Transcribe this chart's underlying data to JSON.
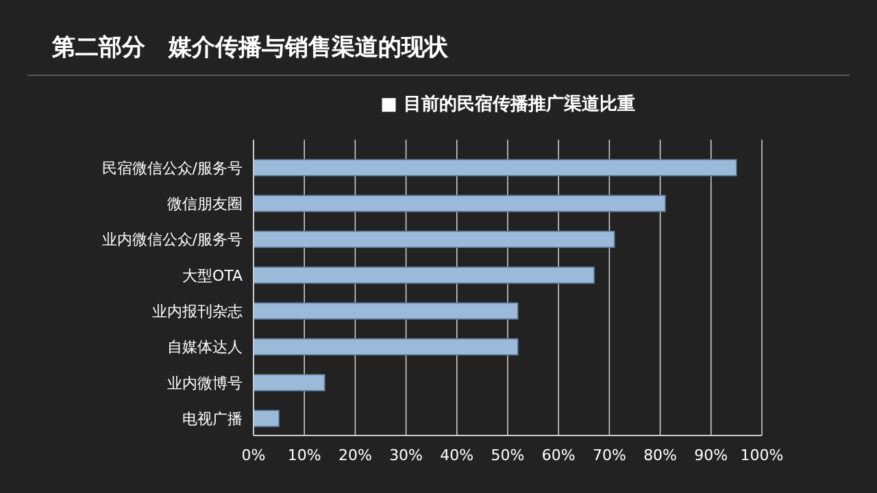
{
  "chart_data": {
    "type": "bar",
    "orientation": "horizontal",
    "title": "第二部分　媒介传播与销售渠道的现状",
    "subtitle": "■ 目前的民宿传播推广渠道比重",
    "categories": [
      "民宿微信公众/服务号",
      "微信朋友圈",
      "业内微信公众/服务号",
      "大型OTA",
      "业内报刊杂志",
      "自媒体达人",
      "业内微博号",
      "电视广播"
    ],
    "values": [
      95,
      81,
      71,
      67,
      52,
      52,
      14,
      5
    ],
    "color": "#9bb9d8",
    "xlim": [
      0,
      100
    ],
    "xticks": [
      {
        "value": 0,
        "label": "0%"
      },
      {
        "value": 10,
        "label": "10%"
      },
      {
        "value": 20,
        "label": "20%"
      },
      {
        "value": 30,
        "label": "30%"
      },
      {
        "value": 40,
        "label": "40%"
      },
      {
        "value": 50,
        "label": "50%"
      },
      {
        "value": 60,
        "label": "60%"
      },
      {
        "value": 70,
        "label": "70%"
      },
      {
        "value": 80,
        "label": "80%"
      },
      {
        "value": 90,
        "label": "90%"
      },
      {
        "value": 100,
        "label": "100%"
      }
    ],
    "grid": "x"
  }
}
